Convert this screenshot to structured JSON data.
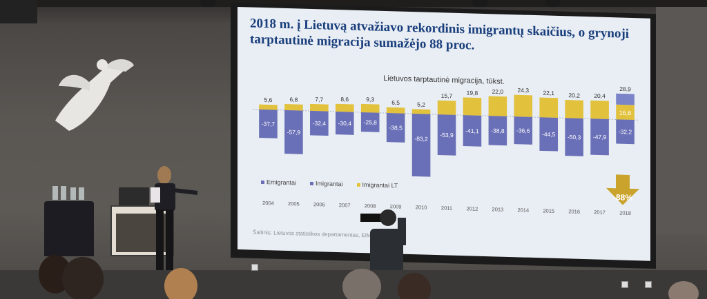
{
  "slide": {
    "title": "2018 m. į Lietuvą atvažiavo rekordinis imigrantų skaičius, o grynoji tarptautinė migracija sumažėjo 88 proc.",
    "source": "Šaltinis: Lietuvos statistikos departamentas, EIMin",
    "arrow_label": "-88%"
  },
  "chart_data": {
    "type": "bar",
    "title": "Lietuvos tarptautinė migracija, tūkst.",
    "categories": [
      "2004",
      "2005",
      "2006",
      "2007",
      "2008",
      "2009",
      "2010",
      "2011",
      "2012",
      "2013",
      "2014",
      "2015",
      "2016",
      "2017",
      "2018"
    ],
    "series": [
      {
        "name": "Emigrantai",
        "values": [
          -37.7,
          -57.9,
          -32.4,
          -30.4,
          -25.8,
          -38.5,
          -83.2,
          -53.9,
          -41.1,
          -38.8,
          -36.6,
          -44.5,
          -50.3,
          -47.9,
          -32.2
        ],
        "color": "#6a70b8"
      },
      {
        "name": "Imigrantai",
        "values": [
          5.6,
          6.8,
          7.7,
          8.6,
          9.3,
          6.5,
          5.2,
          15.7,
          19.8,
          22.0,
          24.3,
          22.1,
          20.2,
          20.4,
          28.9
        ],
        "color": "#6a70b8"
      },
      {
        "name": "Imigrantai LT",
        "values": [
          null,
          null,
          null,
          null,
          null,
          null,
          null,
          null,
          null,
          null,
          null,
          null,
          null,
          null,
          16.6
        ],
        "color": "#e2c13c"
      }
    ],
    "labels_top": [
      "5,6",
      "6,8",
      "7,7",
      "8,6",
      "9,3",
      "6,5",
      "5,2",
      "15,7",
      "19,8",
      "22,0",
      "24,3",
      "22,1",
      "20,2",
      "20,4",
      "28,9"
    ],
    "labels_neg": [
      "-37,7",
      "-57,9",
      "-32,4",
      "-30,4",
      "-25,8",
      "-38,5",
      "-83,2",
      "-53,9",
      "-41,1",
      "-38,8",
      "-36,6",
      "-44,5",
      "-50,3",
      "-47,9",
      "-32,2"
    ],
    "label_lt": "16,6",
    "ylim": [
      -90,
      35
    ],
    "legend_position": "bottom-left",
    "grid": false
  },
  "legend": [
    "Emigrantai",
    "Imigrantai",
    "Imigrantai LT"
  ]
}
